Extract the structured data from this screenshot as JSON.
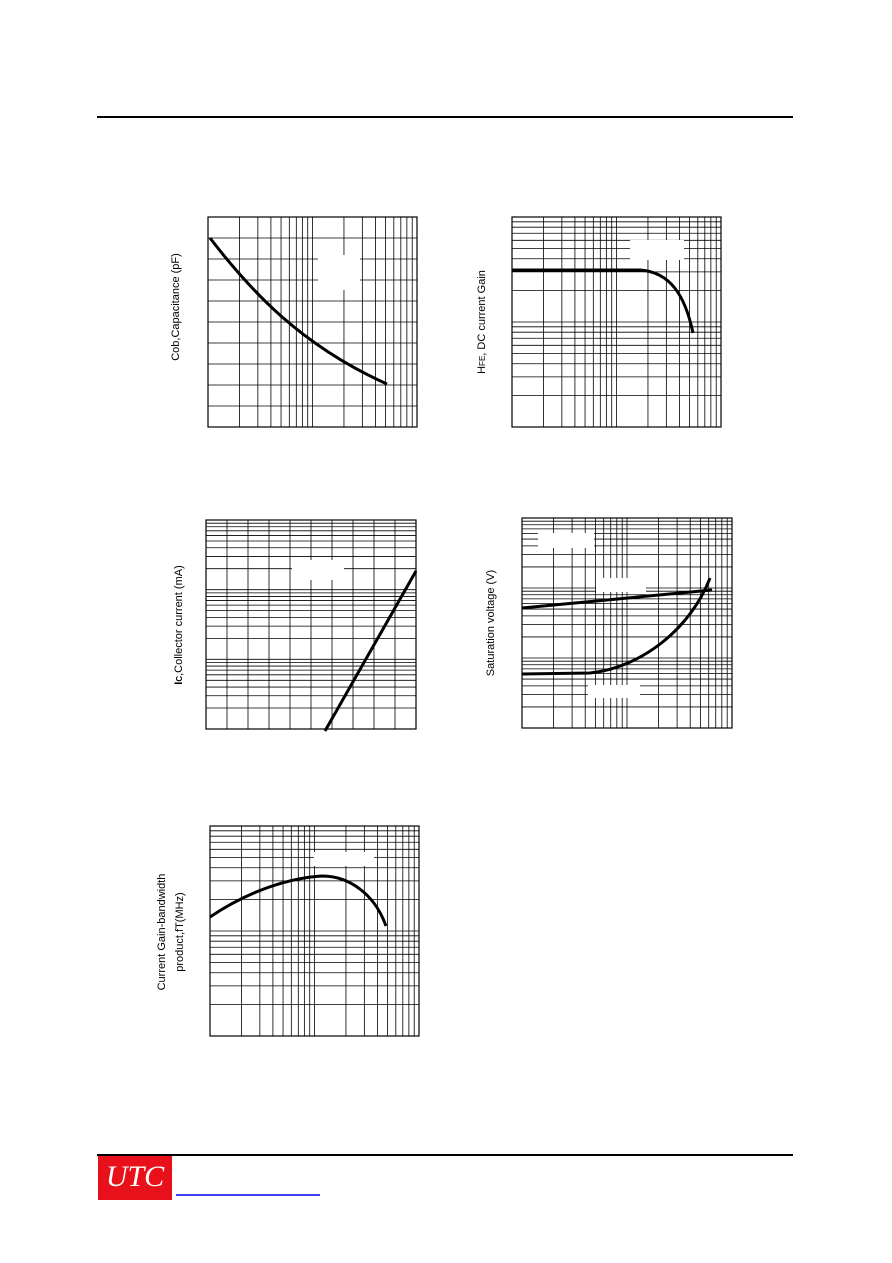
{
  "charts": [
    {
      "y_label": "Cob,Capacitance (pF)"
    },
    {
      "y_label": {
        "main": "H",
        "sub": "FE",
        "rest": ", DC current Gain"
      }
    },
    {
      "y_label": {
        "main": "I",
        "sub": "C",
        "rest": ",Collector current  (mA)"
      }
    },
    {
      "y_label": "Saturation voltage (V)"
    },
    {
      "y_label": [
        "Current Gain-bandwidth",
        "product,fT(MHz)"
      ]
    }
  ],
  "footer": {
    "logo": "UTC"
  }
}
